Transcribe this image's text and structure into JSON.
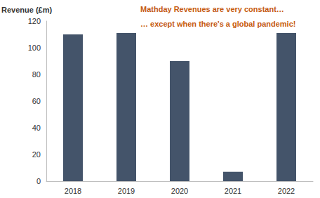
{
  "chart_data": {
    "type": "bar",
    "y_label": "Revenue (£m)",
    "annotations": [
      "Mathday Revenues are very constant…",
      "… except when there's a global pandemic!"
    ],
    "categories": [
      "2018",
      "2019",
      "2020",
      "2021",
      "2022"
    ],
    "values": [
      110,
      111,
      90,
      7,
      111
    ],
    "color": "#44546a",
    "ylim": [
      0,
      120
    ],
    "yticks": [
      0,
      20,
      40,
      60,
      80,
      100,
      120
    ],
    "grid": false
  }
}
